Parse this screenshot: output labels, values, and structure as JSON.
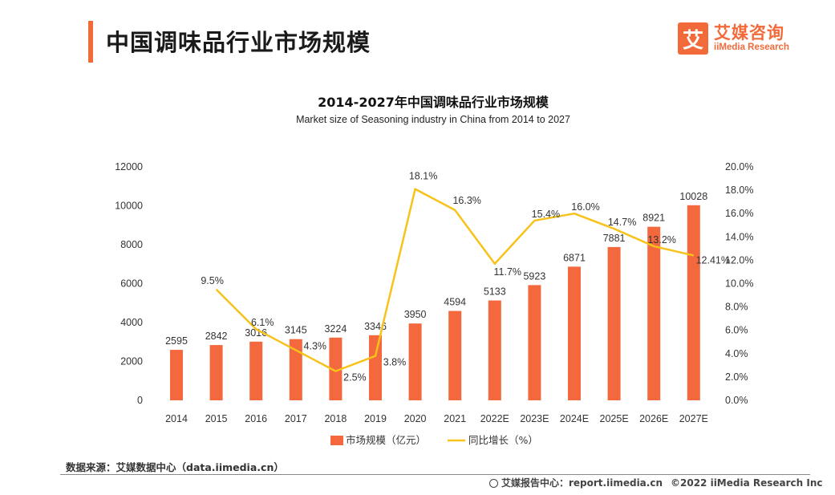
{
  "header": {
    "title": "中国调味品行业市场规模",
    "logo_mark": "艾",
    "logo_cn": "艾媒咨询",
    "logo_en": "iiMedia Research"
  },
  "colors": {
    "bar": "#f4683d",
    "line": "#f7c21a",
    "accent": "#f26a3a"
  },
  "chart_data": {
    "type": "bar",
    "title": "2014-2027年中国调味品行业市场规模",
    "subtitle": "Market size of Seasoning industry in China from 2014 to 2027",
    "categories": [
      "2014",
      "2015",
      "2016",
      "2017",
      "2018",
      "2019",
      "2020",
      "2021",
      "2022E",
      "2023E",
      "2024E",
      "2025E",
      "2026E",
      "2027E"
    ],
    "series": [
      {
        "name": "市场规模（亿元）",
        "type": "bar",
        "axis": "left",
        "values": [
          2595,
          2842,
          3016,
          3145,
          3224,
          3346,
          3950,
          4594,
          5133,
          5923,
          6871,
          7881,
          8921,
          10028
        ],
        "labels": [
          "2595",
          "2842",
          "3016",
          "3145",
          "3224",
          "3346",
          "3950",
          "4594",
          "5133",
          "5923",
          "6871",
          "7881",
          "8921",
          "10028"
        ]
      },
      {
        "name": "同比增长（%）",
        "type": "line",
        "axis": "right",
        "values": [
          null,
          9.5,
          6.1,
          4.3,
          2.5,
          3.8,
          18.1,
          16.3,
          11.7,
          15.4,
          16.0,
          14.7,
          13.2,
          12.41
        ],
        "labels": [
          "",
          "9.5%",
          "6.1%",
          "4.3%",
          "2.5%",
          "3.8%",
          "18.1%",
          "16.3%",
          "11.7%",
          "15.4%",
          "16.0%",
          "14.7%",
          "13.2%",
          "12.41%"
        ]
      }
    ],
    "ylim_left": [
      0,
      12000
    ],
    "yticks_left": [
      "0",
      "2000",
      "4000",
      "6000",
      "8000",
      "10000",
      "12000"
    ],
    "ylim_right": [
      0,
      20
    ],
    "yticks_right": [
      "0.0%",
      "2.0%",
      "4.0%",
      "6.0%",
      "8.0%",
      "10.0%",
      "12.0%",
      "14.0%",
      "16.0%",
      "18.0%",
      "20.0%"
    ],
    "grid": false,
    "legend_position": "bottom"
  },
  "footer": {
    "source": "数据来源：艾媒数据中心（data.iimedia.cn）",
    "report_center": "艾媒报告中心：report.iimedia.cn",
    "copyright": "©2022  iiMedia Research  Inc"
  }
}
